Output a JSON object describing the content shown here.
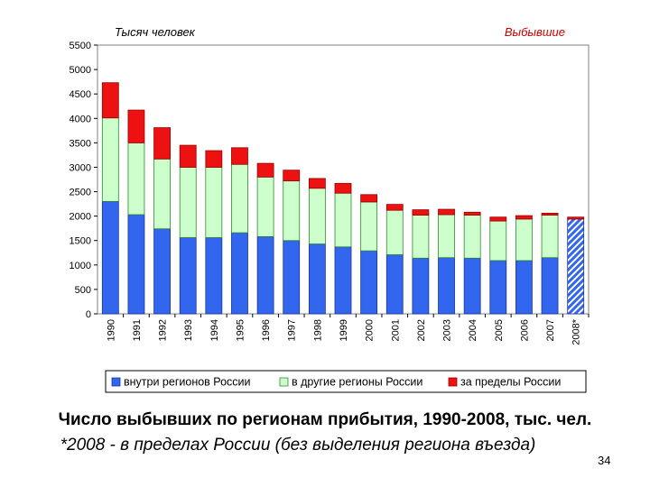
{
  "chart_data": {
    "type": "bar",
    "stacked": true,
    "ylabel_left": "Тысяч человек",
    "ylabel_right": "Выбывшие",
    "ylim": [
      0,
      5500
    ],
    "yticks": [
      0,
      500,
      1000,
      1500,
      2000,
      2500,
      3000,
      3500,
      4000,
      4500,
      5000,
      5500
    ],
    "categories": [
      "1990",
      "1991",
      "1992",
      "1993",
      "1994",
      "1995",
      "1996",
      "1997",
      "1998",
      "1999",
      "2000",
      "2001",
      "2002",
      "2003",
      "2004",
      "2005",
      "2006",
      "2007",
      "2008*"
    ],
    "series": [
      {
        "name": "внутри регионов России",
        "color": "#3366ee",
        "values": [
          2300,
          2030,
          1740,
          1560,
          1560,
          1660,
          1580,
          1500,
          1430,
          1370,
          1290,
          1210,
          1140,
          1150,
          1140,
          1090,
          1090,
          1150,
          1940
        ]
      },
      {
        "name": "в другие регионы России",
        "color": "#ccffcc",
        "values": [
          1710,
          1470,
          1430,
          1440,
          1440,
          1400,
          1220,
          1220,
          1140,
          1100,
          1000,
          910,
          880,
          880,
          880,
          810,
          850,
          870,
          0
        ]
      },
      {
        "name": "за пределы России",
        "color": "#ee1111",
        "values": [
          720,
          670,
          640,
          450,
          340,
          340,
          280,
          220,
          200,
          200,
          150,
          120,
          110,
          110,
          60,
          80,
          70,
          40,
          40
        ]
      }
    ],
    "hatched_category": "2008*",
    "grid": false,
    "legend": "bottom"
  },
  "caption": {
    "title": "Число выбывших по регионам прибытия, 1990-2008, тыс. чел.",
    "note": "*2008 - в пределах России (без выделения региона въезда)"
  },
  "page_number": "34"
}
